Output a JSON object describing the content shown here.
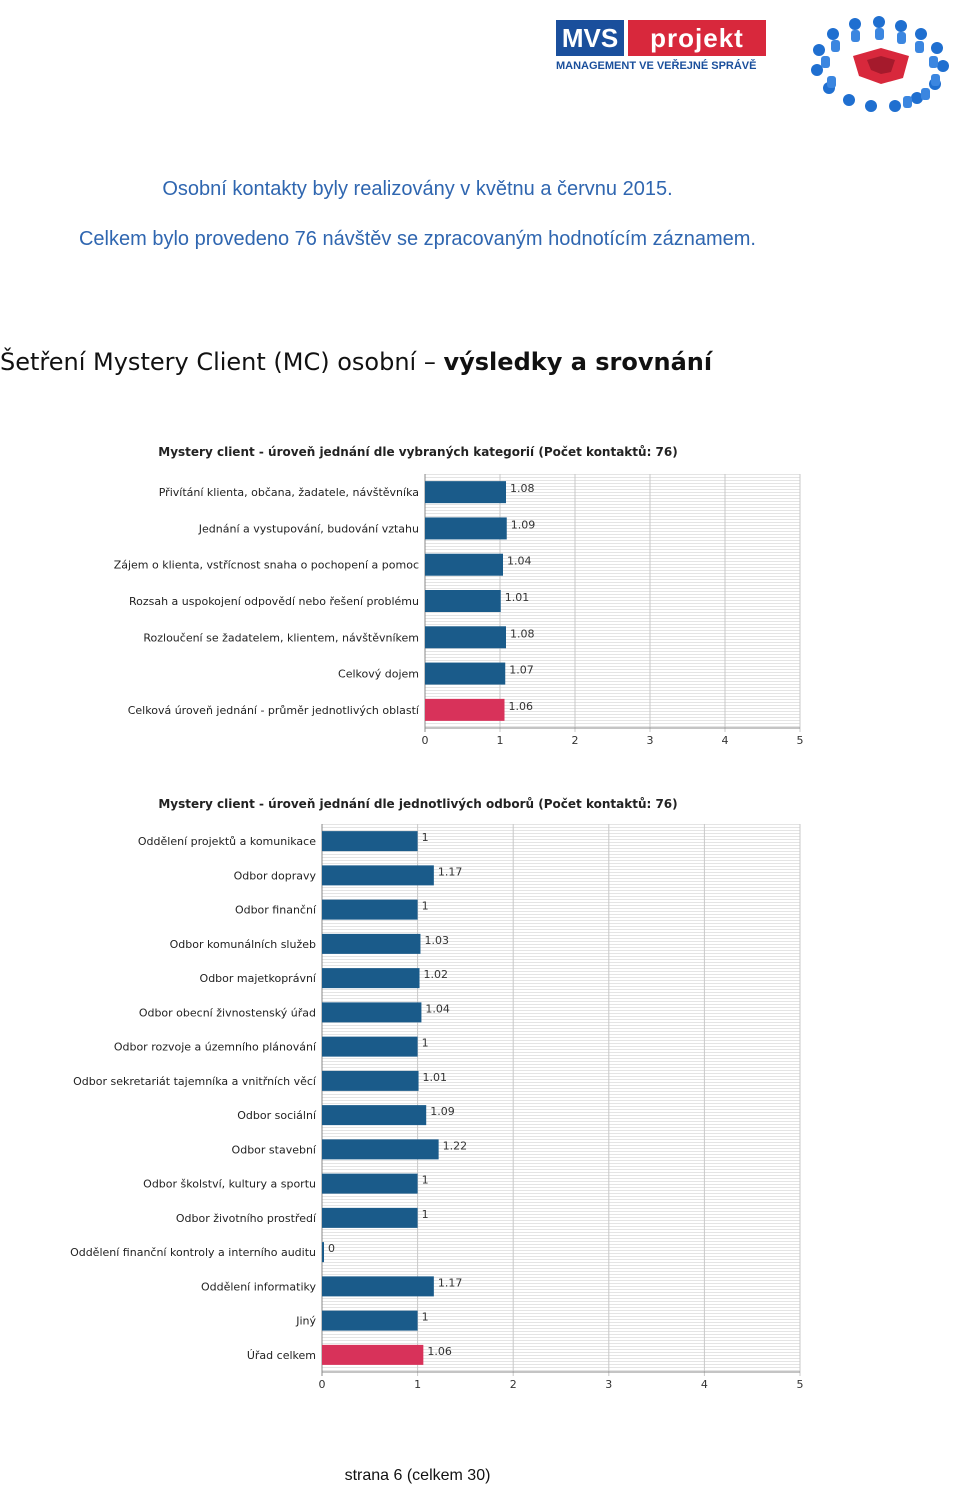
{
  "logo": {
    "mvs": "MVS",
    "projekt": "projekt",
    "subtitle": "MANAGEMENT VE VEŘEJNÉ SPRÁVĚ"
  },
  "intro": {
    "line1": "Osobní kontakty byly realizovány v květnu a červnu 2015.",
    "line2": "Celkem bylo provedeno 76 návštěv se zpracovaným hodnotícím záznamem."
  },
  "heading": {
    "part1": "Šetření Mystery Client (MC) osobní – ",
    "part2": "výsledky a srovnání"
  },
  "colors": {
    "bar": "#1a5b8a",
    "highlight": "#d8325a",
    "grid": "#e4e4e4",
    "text_blue": "#2f66b0"
  },
  "chart_data": [
    {
      "type": "bar",
      "orientation": "horizontal",
      "title": "Mystery client - úroveň jednání dle vybraných kategorií (Počet kontaktů: 76)",
      "categories": [
        "Přivítání klienta, občana, žadatele, návštěvníka",
        "Jednání a vystupování, budování vztahu",
        "Zájem o klienta, vstřícnost snaha o pochopení a pomoc",
        "Rozsah a uspokojení odpovědí nebo řešení problému",
        "Rozloučení se žadatelem, klientem, návštěvníkem",
        "Celkový dojem",
        "Celková úroveň jednání - průměr jednotlivých oblastí"
      ],
      "values": [
        1.08,
        1.09,
        1.04,
        1.01,
        1.08,
        1.07,
        1.06
      ],
      "value_labels": [
        "1.08",
        "1.09",
        "1.04",
        "1.01",
        "1.08",
        "1.07",
        "1.06"
      ],
      "highlight_index": 6,
      "xlim": [
        0,
        5
      ],
      "xticks": [
        "0",
        "1",
        "2",
        "3",
        "4",
        "5"
      ],
      "grid": true,
      "legend": "none"
    },
    {
      "type": "bar",
      "orientation": "horizontal",
      "title": "Mystery client - úroveň jednání dle jednotlivých odborů (Počet kontaktů: 76)",
      "categories": [
        "Oddělení projektů a komunikace",
        "Odbor dopravy",
        "Odbor finanční",
        "Odbor komunálních služeb",
        "Odbor majetkoprávní",
        "Odbor obecní živnostenský úřad",
        "Odbor rozvoje a územního plánování",
        "Odbor sekretariát tajemníka a vnitřních věcí",
        "Odbor sociální",
        "Odbor stavební",
        "Odbor školství, kultury a sportu",
        "Odbor životního prostředí",
        "Oddělení finanční kontroly a interního auditu",
        "Oddělení informatiky",
        "Jiný",
        "Úřad celkem"
      ],
      "values": [
        1,
        1.17,
        1,
        1.03,
        1.02,
        1.04,
        1,
        1.01,
        1.09,
        1.22,
        1,
        1,
        0,
        1.17,
        1,
        1.06
      ],
      "value_labels": [
        "1",
        "1.17",
        "1",
        "1.03",
        "1.02",
        "1.04",
        "1",
        "1.01",
        "1.09",
        "1.22",
        "1",
        "1",
        "0",
        "1.17",
        "1",
        "1.06"
      ],
      "highlight_index": 15,
      "xlim": [
        0,
        5
      ],
      "xticks": [
        "0",
        "1",
        "2",
        "3",
        "4",
        "5"
      ],
      "grid": true,
      "legend": "none"
    }
  ],
  "footer": "strana 6 (celkem 30)"
}
